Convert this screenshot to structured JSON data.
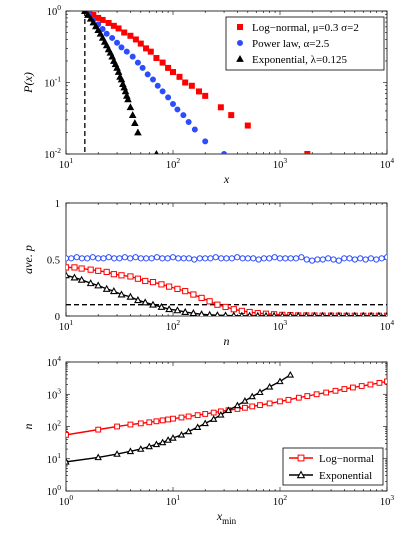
{
  "chart_data": [
    {
      "type": "scatter",
      "xlabel": "x",
      "ylabel": "P(x)",
      "xscale": "log",
      "yscale": "log",
      "xlim": [
        10,
        10000
      ],
      "ylim": [
        0.01,
        1
      ],
      "grid": false,
      "legend_position": "top-right",
      "xticks": [
        {
          "base": "10",
          "exp": "1"
        },
        {
          "base": "10",
          "exp": "2"
        },
        {
          "base": "10",
          "exp": "3"
        },
        {
          "base": "10",
          "exp": "4"
        }
      ],
      "yticks": [
        {
          "base": "10",
          "exp": "-2"
        },
        {
          "base": "10",
          "exp": "-1"
        },
        {
          "base": "10",
          "exp": "0"
        }
      ],
      "annotations": [
        {
          "type": "vertical-dashed-line",
          "x": 15
        }
      ],
      "series": [
        {
          "name": "Log−normal, μ=0.3 σ=2",
          "color": "#ff0000",
          "marker": "square",
          "x": [
            15,
            16.5,
            18,
            20,
            22,
            25,
            28,
            31,
            35,
            40,
            45,
            50,
            56,
            62,
            70,
            80,
            90,
            100,
            115,
            130,
            150,
            175,
            200,
            280,
            350,
            500,
            1800
          ],
          "y": [
            1.0,
            0.95,
            0.88,
            0.8,
            0.75,
            0.68,
            0.62,
            0.57,
            0.5,
            0.45,
            0.4,
            0.35,
            0.3,
            0.27,
            0.22,
            0.19,
            0.16,
            0.14,
            0.12,
            0.1,
            0.09,
            0.075,
            0.065,
            0.045,
            0.035,
            0.025,
            0.01
          ]
        },
        {
          "name": "Power law, α=2.5",
          "color": "#2b4dff",
          "marker": "circle",
          "x": [
            15,
            16.5,
            18,
            20,
            22,
            24,
            27,
            30,
            33,
            37,
            42,
            47,
            52,
            58,
            65,
            72,
            80,
            90,
            100,
            110,
            125,
            140,
            160,
            200,
            300
          ],
          "y": [
            1.0,
            0.88,
            0.75,
            0.65,
            0.56,
            0.48,
            0.42,
            0.36,
            0.31,
            0.27,
            0.23,
            0.19,
            0.16,
            0.13,
            0.11,
            0.09,
            0.075,
            0.062,
            0.05,
            0.042,
            0.035,
            0.028,
            0.022,
            0.015,
            0.01
          ]
        },
        {
          "name": "Exponential, λ=0.125",
          "color": "#000000",
          "marker": "triangle",
          "x": [
            15,
            16,
            17,
            18,
            19,
            20,
            21,
            22,
            23,
            24,
            25,
            26,
            27,
            28,
            29,
            30,
            31,
            32,
            33,
            34,
            35,
            36,
            37,
            38,
            40,
            42,
            44,
            47,
            70
          ],
          "y": [
            1.0,
            0.88,
            0.78,
            0.69,
            0.61,
            0.54,
            0.48,
            0.42,
            0.37,
            0.33,
            0.29,
            0.26,
            0.23,
            0.2,
            0.18,
            0.16,
            0.14,
            0.12,
            0.11,
            0.095,
            0.085,
            0.075,
            0.065,
            0.058,
            0.045,
            0.035,
            0.027,
            0.02,
            0.01
          ]
        }
      ]
    },
    {
      "type": "line",
      "xlabel": "n",
      "ylabel": "ave. p",
      "xscale": "log",
      "xlim": [
        10,
        10000
      ],
      "ylim": [
        0,
        1
      ],
      "grid": false,
      "xticks": [
        {
          "base": "10",
          "exp": "1"
        },
        {
          "base": "10",
          "exp": "2"
        },
        {
          "base": "10",
          "exp": "3"
        },
        {
          "base": "10",
          "exp": "4"
        }
      ],
      "yticks": [
        "0",
        "0.5",
        "1"
      ],
      "annotations": [
        {
          "type": "horizontal-dashed-line",
          "y": 0.1
        }
      ],
      "series": [
        {
          "color": "#2b4dff",
          "marker": "circle",
          "x": [
            10,
            11.2,
            12.6,
            14.1,
            15.8,
            17.8,
            20,
            22.4,
            25.1,
            28.2,
            31.6,
            35.5,
            39.8,
            44.7,
            50.1,
            56.2,
            63.1,
            70.8,
            79.4,
            89.1,
            100,
            112,
            126,
            141,
            158,
            178,
            200,
            224,
            251,
            282,
            316,
            355,
            398,
            447,
            501,
            562,
            631,
            708,
            794,
            891,
            1000,
            1122,
            1259,
            1413,
            1585,
            1778,
            1995,
            2239,
            2512,
            2818,
            3162,
            3548,
            3981,
            4467,
            5012,
            5623,
            6310,
            7079,
            7943,
            8913,
            10000
          ],
          "y": [
            0.51,
            0.51,
            0.52,
            0.51,
            0.51,
            0.52,
            0.51,
            0.51,
            0.52,
            0.51,
            0.51,
            0.52,
            0.51,
            0.52,
            0.51,
            0.51,
            0.51,
            0.52,
            0.51,
            0.51,
            0.52,
            0.51,
            0.51,
            0.51,
            0.5,
            0.51,
            0.51,
            0.51,
            0.52,
            0.51,
            0.51,
            0.51,
            0.52,
            0.51,
            0.51,
            0.51,
            0.5,
            0.51,
            0.51,
            0.52,
            0.51,
            0.51,
            0.51,
            0.51,
            0.52,
            0.5,
            0.49,
            0.5,
            0.5,
            0.51,
            0.5,
            0.49,
            0.51,
            0.51,
            0.5,
            0.51,
            0.5,
            0.51,
            0.5,
            0.51,
            0.52
          ]
        },
        {
          "color": "#ff0000",
          "marker": "square",
          "x": [
            10,
            12,
            14,
            17,
            20,
            24,
            28,
            33,
            40,
            47,
            55,
            65,
            78,
            92,
            110,
            130,
            155,
            185,
            220,
            260,
            310,
            370,
            440,
            520,
            620,
            740,
            880,
            1050,
            1250,
            1480,
            1760,
            2100,
            2500,
            3000,
            3550,
            4200,
            5000,
            6000,
            7100,
            8400,
            10000
          ],
          "y": [
            0.43,
            0.43,
            0.42,
            0.41,
            0.4,
            0.39,
            0.37,
            0.36,
            0.35,
            0.33,
            0.31,
            0.3,
            0.28,
            0.26,
            0.24,
            0.22,
            0.19,
            0.16,
            0.13,
            0.1,
            0.08,
            0.06,
            0.045,
            0.035,
            0.025,
            0.02,
            0.015,
            0.01,
            0.008,
            0.005,
            0.005,
            0.004,
            0.003,
            0.003,
            0.003,
            0.002,
            0.002,
            0.002,
            0.002,
            0.002,
            0.002
          ]
        },
        {
          "color": "#000000",
          "marker": "triangle",
          "x": [
            10,
            12,
            14,
            17,
            20,
            24,
            28,
            33,
            40,
            47,
            55,
            65,
            78,
            92,
            110,
            130,
            155,
            185,
            220,
            260,
            310,
            370,
            440,
            520,
            620,
            740,
            880,
            1050,
            1250,
            1480,
            1760,
            2100,
            2500,
            3000,
            3550,
            4200,
            5000,
            6000,
            7100,
            8400,
            10000
          ],
          "y": [
            0.36,
            0.34,
            0.32,
            0.29,
            0.27,
            0.24,
            0.22,
            0.19,
            0.17,
            0.14,
            0.12,
            0.1,
            0.08,
            0.06,
            0.05,
            0.035,
            0.025,
            0.015,
            0.01,
            0.007,
            0.005,
            0.003,
            0.002,
            0.002,
            0.001,
            0.001,
            0.001,
            0.001,
            0.001,
            0.001,
            0.001,
            0.001,
            0.001,
            0.001,
            0.001,
            0.001,
            0.001,
            0.001,
            0.001,
            0.001,
            0.001
          ]
        }
      ]
    },
    {
      "type": "line",
      "xlabel": "x",
      "xlabel_subscript": "min",
      "ylabel": "n",
      "xscale": "log",
      "yscale": "log",
      "xlim": [
        1,
        1000
      ],
      "ylim": [
        1,
        10000
      ],
      "grid": false,
      "legend_position": "bottom-right",
      "xticks": [
        {
          "base": "10",
          "exp": "0"
        },
        {
          "base": "10",
          "exp": "1"
        },
        {
          "base": "10",
          "exp": "2"
        },
        {
          "base": "10",
          "exp": "3"
        }
      ],
      "yticks": [
        {
          "base": "10",
          "exp": "0"
        },
        {
          "base": "10",
          "exp": "1"
        },
        {
          "base": "10",
          "exp": "2"
        },
        {
          "base": "10",
          "exp": "3"
        },
        {
          "base": "10",
          "exp": "4"
        }
      ],
      "series": [
        {
          "name": "Log−normal",
          "color": "#ff0000",
          "marker": "square",
          "x": [
            1,
            2,
            3,
            4,
            5,
            6,
            7,
            8,
            9,
            10,
            12,
            14,
            17,
            20,
            24,
            28,
            33,
            40,
            47,
            55,
            65,
            80,
            100,
            120,
            150,
            180,
            220,
            270,
            330,
            400,
            480,
            580,
            700,
            850,
            1000
          ],
          "y": [
            55,
            80,
            100,
            115,
            125,
            135,
            145,
            155,
            165,
            175,
            190,
            205,
            225,
            245,
            270,
            295,
            320,
            350,
            380,
            420,
            460,
            520,
            600,
            670,
            780,
            880,
            1000,
            1130,
            1280,
            1450,
            1620,
            1800,
            2000,
            2250,
            2500
          ]
        },
        {
          "name": "Exponential",
          "color": "#000000",
          "marker": "triangle",
          "x": [
            1,
            2,
            3,
            4,
            5,
            6,
            7,
            8,
            9,
            10,
            12,
            14,
            17,
            20,
            24,
            28,
            33,
            40,
            47,
            55,
            65,
            80,
            100,
            125
          ],
          "y": [
            8,
            11,
            14,
            17,
            20,
            24,
            28,
            32,
            38,
            44,
            55,
            70,
            95,
            125,
            170,
            230,
            320,
            450,
            620,
            850,
            1150,
            1700,
            2500,
            4000
          ]
        }
      ]
    }
  ]
}
